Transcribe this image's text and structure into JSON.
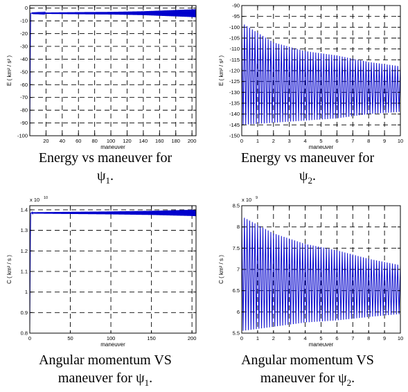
{
  "captions": [
    {
      "main": "Energy vs maneuver for",
      "symbol": "ψ",
      "sub": "1",
      "end": "."
    },
    {
      "main": "Energy vs maneuver for",
      "symbol": "ψ",
      "sub": "2",
      "end": "."
    },
    {
      "main": "Angular momentum VS",
      "line2": "maneuver for ",
      "symbol": "ψ",
      "sub": "1",
      "end": "."
    },
    {
      "main": "Angular momentum VS",
      "line2": "maneuver for ",
      "symbol": "ψ",
      "sub": "2",
      "end": "."
    }
  ],
  "colors": {
    "series": "#0000cc",
    "grid": "#000000",
    "axis": "#000000"
  },
  "chart_data": [
    {
      "type": "line",
      "xlabel": "maneuver",
      "ylabel": "E ( km² / s² )",
      "xlim": [
        0,
        205
      ],
      "ylim": [
        -100,
        2
      ],
      "xticks": [
        20,
        40,
        60,
        80,
        100,
        120,
        140,
        160,
        180,
        200
      ],
      "yticks": [
        0,
        -10,
        -20,
        -30,
        -40,
        -50,
        -60,
        -70,
        -80,
        -90,
        -100
      ],
      "grid": true,
      "series": [
        {
          "x": [
            0,
            1,
            2,
            3,
            20,
            60,
            100,
            140,
            160,
            180,
            200,
            205
          ],
          "y_center": [
            -100,
            -4,
            -4,
            -4,
            -4,
            -4,
            -4,
            -4,
            -4,
            -4,
            -4,
            -4
          ],
          "y_amplitude": [
            0,
            0,
            0,
            0.3,
            0.5,
            0.8,
            1.0,
            1.5,
            2.0,
            2.5,
            3.0,
            3.2
          ]
        }
      ]
    },
    {
      "type": "line",
      "xlabel": "maneuver",
      "ylabel": "E ( km² / s² )",
      "xlim": [
        0,
        10
      ],
      "ylim": [
        -150,
        -90
      ],
      "xticks": [
        0,
        1,
        2,
        3,
        4,
        5,
        6,
        7,
        8,
        9,
        10
      ],
      "yticks": [
        -90,
        -95,
        -100,
        -105,
        -110,
        -115,
        -120,
        -125,
        -130,
        -135,
        -140,
        -145,
        -150
      ],
      "grid": true,
      "series": [
        {
          "x": [
            0,
            2,
            4,
            6,
            8,
            10
          ],
          "upper": [
            -98,
            -107,
            -111,
            -113,
            -116,
            -118
          ],
          "lower": [
            -145,
            -144,
            -143,
            -142,
            -140,
            -139
          ]
        }
      ]
    },
    {
      "type": "line",
      "xlabel": "maneuver",
      "ylabel": "C ( km² / s )",
      "exponent_label": "x 10",
      "exponent_power": "10",
      "xlim": [
        0,
        205
      ],
      "ylim": [
        0.8,
        1.42
      ],
      "xticks": [
        0,
        50,
        100,
        150,
        200
      ],
      "yticks": [
        0.8,
        0.9,
        1,
        1.1,
        1.2,
        1.3,
        1.4
      ],
      "ytick_labels": [
        "0.8",
        "0.9",
        "1",
        "1.1",
        "1.2",
        "1.3",
        "1.4"
      ],
      "grid": true,
      "series": [
        {
          "x": [
            0,
            1,
            2,
            3,
            50,
            100,
            150,
            200,
            205
          ],
          "y_center": [
            0.82,
            1.385,
            1.385,
            1.385,
            1.385,
            1.385,
            1.385,
            1.385,
            1.385
          ],
          "y_amplitude": [
            0,
            0,
            0,
            0.003,
            0.005,
            0.007,
            0.01,
            0.015,
            0.016
          ]
        }
      ]
    },
    {
      "type": "line",
      "xlabel": "maneuver",
      "ylabel": "C ( km² / s )",
      "exponent_label": "x 10",
      "exponent_power": "9",
      "xlim": [
        0,
        10
      ],
      "ylim": [
        5.5,
        8.5
      ],
      "xticks": [
        0,
        1,
        2,
        3,
        4,
        5,
        6,
        7,
        8,
        9,
        10
      ],
      "yticks": [
        5.5,
        6,
        6.5,
        7,
        7.5,
        8,
        8.5
      ],
      "ytick_labels": [
        "5.5",
        "6",
        "6.5",
        "7",
        "7.5",
        "8",
        "8.5"
      ],
      "grid": true,
      "series": [
        {
          "x": [
            0,
            2,
            4,
            6,
            8,
            10
          ],
          "upper": [
            8.25,
            7.85,
            7.6,
            7.45,
            7.25,
            7.1
          ],
          "lower": [
            5.55,
            5.65,
            5.75,
            5.8,
            5.88,
            5.95
          ]
        }
      ]
    }
  ]
}
